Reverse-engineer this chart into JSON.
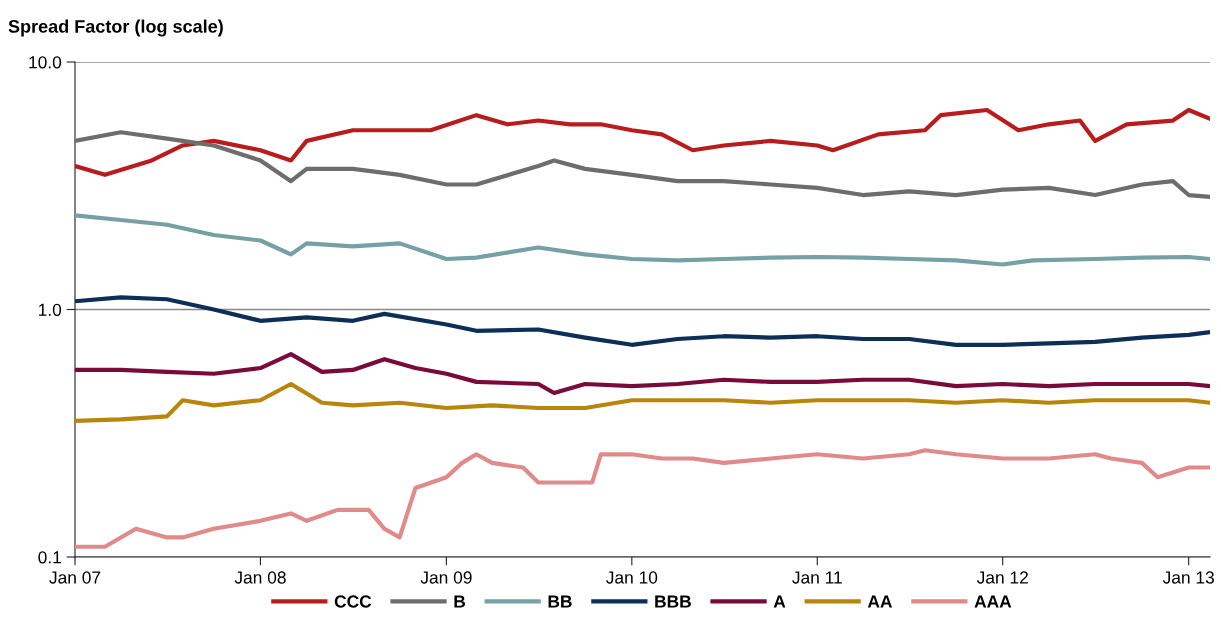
{
  "chart_data": {
    "type": "line",
    "ylabel": "Spread Factor (log scale)",
    "log": "y",
    "grid": "y",
    "legend": "bottom",
    "marker": "none",
    "line_style": "solid",
    "xlim": [
      "2007-01-01",
      "2013-02-12"
    ],
    "xticks": [
      {
        "value": "2007-01-01",
        "label": "Jan 07"
      },
      {
        "value": "2008-01-01",
        "label": "Jan 08"
      },
      {
        "value": "2009-01-01",
        "label": "Jan 09"
      },
      {
        "value": "2010-01-01",
        "label": "Jan 10"
      },
      {
        "value": "2011-01-01",
        "label": "Jan 11"
      },
      {
        "value": "2012-01-01",
        "label": "Jan 12"
      },
      {
        "value": "2013-01-01",
        "label": "Jan 13"
      }
    ],
    "ylim": [
      0.1,
      10
    ],
    "yticks": [
      {
        "value": 0.1,
        "label": "0.1"
      },
      {
        "value": 1,
        "label": "1.0"
      },
      {
        "value": 10,
        "label": "10.0"
      }
    ],
    "series": [
      {
        "name": "CCC",
        "color": "#b81c1c",
        "x": [
          "2007-01-01",
          "2007-03-01",
          "2007-06-01",
          "2007-08-01",
          "2007-10-01",
          "2008-01-01",
          "2008-03-01",
          "2008-04-01",
          "2008-07-01",
          "2008-09-01",
          "2008-12-01",
          "2009-03-01",
          "2009-05-01",
          "2009-07-01",
          "2009-09-01",
          "2009-11-01",
          "2010-01-01",
          "2010-03-01",
          "2010-05-01",
          "2010-07-01",
          "2010-10-01",
          "2011-01-01",
          "2011-02-01",
          "2011-05-01",
          "2011-08-01",
          "2011-09-01",
          "2011-12-01",
          "2012-02-01",
          "2012-04-01",
          "2012-06-01",
          "2012-07-01",
          "2012-09-01",
          "2012-12-01",
          "2013-01-01",
          "2013-02-12"
        ],
        "values": [
          3.8,
          3.5,
          4.0,
          4.6,
          4.8,
          4.4,
          4.0,
          4.8,
          5.3,
          5.3,
          5.3,
          6.1,
          5.6,
          5.8,
          5.6,
          5.6,
          5.3,
          5.1,
          4.4,
          4.6,
          4.8,
          4.6,
          4.4,
          5.1,
          5.3,
          6.1,
          6.4,
          5.3,
          5.6,
          5.8,
          4.8,
          5.6,
          5.8,
          6.4,
          5.9
        ]
      },
      {
        "name": "B",
        "color": "#6d6d6d",
        "x": [
          "2007-01-01",
          "2007-04-01",
          "2007-07-01",
          "2007-08-01",
          "2007-10-01",
          "2008-01-01",
          "2008-03-01",
          "2008-04-01",
          "2008-07-01",
          "2008-10-01",
          "2009-01-01",
          "2009-03-01",
          "2009-07-01",
          "2009-08-01",
          "2009-10-01",
          "2010-01-01",
          "2010-04-01",
          "2010-07-01",
          "2010-10-01",
          "2011-01-01",
          "2011-04-01",
          "2011-07-01",
          "2011-10-01",
          "2012-01-01",
          "2012-04-01",
          "2012-07-01",
          "2012-10-01",
          "2012-12-01",
          "2013-01-01",
          "2013-02-12"
        ],
        "values": [
          4.8,
          5.2,
          4.9,
          4.8,
          4.6,
          4.0,
          3.3,
          3.7,
          3.7,
          3.5,
          3.2,
          3.2,
          3.8,
          4.0,
          3.7,
          3.5,
          3.3,
          3.3,
          3.2,
          3.1,
          2.9,
          3.0,
          2.9,
          3.05,
          3.1,
          2.9,
          3.2,
          3.3,
          2.9,
          2.85
        ]
      },
      {
        "name": "BB",
        "color": "#76a0a3",
        "x": [
          "2007-01-01",
          "2007-04-01",
          "2007-07-01",
          "2007-10-01",
          "2008-01-01",
          "2008-03-01",
          "2008-04-01",
          "2008-07-01",
          "2008-10-01",
          "2009-01-01",
          "2009-03-01",
          "2009-07-01",
          "2009-10-01",
          "2010-01-01",
          "2010-04-01",
          "2010-07-01",
          "2010-10-01",
          "2011-01-01",
          "2011-04-01",
          "2011-07-01",
          "2011-10-01",
          "2012-01-01",
          "2012-03-01",
          "2012-07-01",
          "2012-10-01",
          "2013-01-01",
          "2013-02-12"
        ],
        "values": [
          2.4,
          2.3,
          2.2,
          2.0,
          1.9,
          1.67,
          1.85,
          1.8,
          1.85,
          1.6,
          1.62,
          1.78,
          1.67,
          1.6,
          1.58,
          1.6,
          1.62,
          1.63,
          1.62,
          1.6,
          1.58,
          1.52,
          1.58,
          1.6,
          1.62,
          1.63,
          1.6
        ]
      },
      {
        "name": "BBB",
        "color": "#0d2e57",
        "x": [
          "2007-01-01",
          "2007-04-01",
          "2007-07-01",
          "2007-10-01",
          "2008-01-01",
          "2008-04-01",
          "2008-07-01",
          "2008-09-01",
          "2009-01-01",
          "2009-03-01",
          "2009-07-01",
          "2009-10-01",
          "2010-01-01",
          "2010-04-01",
          "2010-07-01",
          "2010-10-01",
          "2011-01-01",
          "2011-04-01",
          "2011-07-01",
          "2011-10-01",
          "2012-01-01",
          "2012-04-01",
          "2012-07-01",
          "2012-10-01",
          "2013-01-01",
          "2013-02-12"
        ],
        "values": [
          1.08,
          1.12,
          1.1,
          1.0,
          0.9,
          0.93,
          0.9,
          0.96,
          0.87,
          0.82,
          0.83,
          0.77,
          0.72,
          0.76,
          0.78,
          0.77,
          0.78,
          0.76,
          0.76,
          0.72,
          0.72,
          0.73,
          0.74,
          0.77,
          0.79,
          0.81
        ]
      },
      {
        "name": "A",
        "color": "#7a0a3a",
        "x": [
          "2007-01-01",
          "2007-04-01",
          "2007-07-01",
          "2007-10-01",
          "2008-01-01",
          "2008-03-01",
          "2008-05-01",
          "2008-07-01",
          "2008-09-01",
          "2008-11-01",
          "2009-01-01",
          "2009-03-01",
          "2009-07-01",
          "2009-08-01",
          "2009-10-01",
          "2010-01-01",
          "2010-04-01",
          "2010-07-01",
          "2010-10-01",
          "2011-01-01",
          "2011-04-01",
          "2011-07-01",
          "2011-10-01",
          "2012-01-01",
          "2012-04-01",
          "2012-07-01",
          "2012-10-01",
          "2013-01-01",
          "2013-02-12"
        ],
        "values": [
          0.57,
          0.57,
          0.56,
          0.55,
          0.58,
          0.66,
          0.56,
          0.57,
          0.63,
          0.58,
          0.55,
          0.51,
          0.5,
          0.46,
          0.5,
          0.49,
          0.5,
          0.52,
          0.51,
          0.51,
          0.52,
          0.52,
          0.49,
          0.5,
          0.49,
          0.5,
          0.5,
          0.5,
          0.49
        ]
      },
      {
        "name": "AA",
        "color": "#b8860b",
        "x": [
          "2007-01-01",
          "2007-04-01",
          "2007-07-01",
          "2007-08-01",
          "2007-10-01",
          "2008-01-01",
          "2008-03-01",
          "2008-05-01",
          "2008-07-01",
          "2008-10-01",
          "2009-01-01",
          "2009-04-01",
          "2009-07-01",
          "2009-10-01",
          "2010-01-01",
          "2010-04-01",
          "2010-07-01",
          "2010-10-01",
          "2011-01-01",
          "2011-04-01",
          "2011-07-01",
          "2011-10-01",
          "2012-01-01",
          "2012-04-01",
          "2012-07-01",
          "2012-10-01",
          "2013-01-01",
          "2013-02-12"
        ],
        "values": [
          0.355,
          0.36,
          0.37,
          0.43,
          0.41,
          0.43,
          0.5,
          0.42,
          0.41,
          0.42,
          0.4,
          0.41,
          0.4,
          0.4,
          0.43,
          0.43,
          0.43,
          0.42,
          0.43,
          0.43,
          0.43,
          0.42,
          0.43,
          0.42,
          0.43,
          0.43,
          0.43,
          0.42
        ]
      },
      {
        "name": "AAA",
        "color": "#e08a8a",
        "x": [
          "2007-01-01",
          "2007-03-01",
          "2007-05-01",
          "2007-07-01",
          "2007-08-01",
          "2007-10-01",
          "2008-01-01",
          "2008-03-01",
          "2008-04-01",
          "2008-06-01",
          "2008-08-01",
          "2008-09-01",
          "2008-10-01",
          "2008-11-01",
          "2009-01-01",
          "2009-02-01",
          "2009-03-01",
          "2009-04-01",
          "2009-06-01",
          "2009-07-01",
          "2009-09-01",
          "2009-10-15",
          "2009-11-01",
          "2010-01-01",
          "2010-03-01",
          "2010-05-01",
          "2010-07-01",
          "2010-10-01",
          "2011-01-01",
          "2011-04-01",
          "2011-07-01",
          "2011-08-01",
          "2011-10-01",
          "2012-01-01",
          "2012-04-01",
          "2012-07-01",
          "2012-08-01",
          "2012-10-01",
          "2012-11-01",
          "2013-01-01",
          "2013-02-12"
        ],
        "values": [
          0.11,
          0.11,
          0.13,
          0.12,
          0.12,
          0.13,
          0.14,
          0.15,
          0.14,
          0.155,
          0.155,
          0.13,
          0.12,
          0.19,
          0.21,
          0.24,
          0.26,
          0.24,
          0.23,
          0.2,
          0.2,
          0.2,
          0.26,
          0.26,
          0.25,
          0.25,
          0.24,
          0.25,
          0.26,
          0.25,
          0.26,
          0.27,
          0.26,
          0.25,
          0.25,
          0.26,
          0.25,
          0.24,
          0.21,
          0.23,
          0.23
        ]
      }
    ]
  }
}
